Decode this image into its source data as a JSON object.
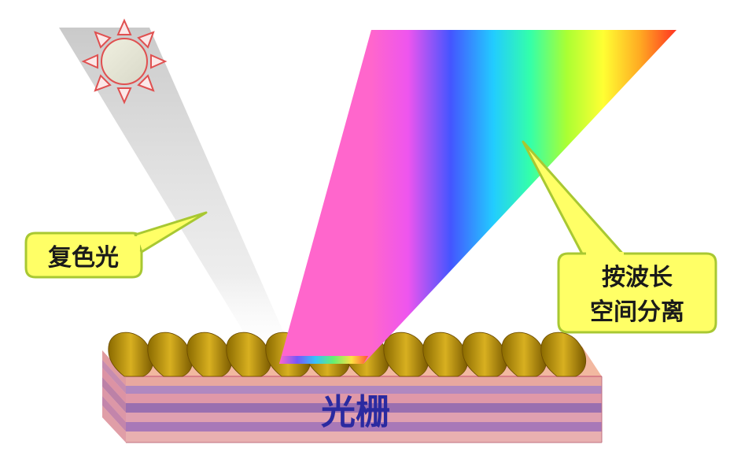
{
  "labels": {
    "incident_light": "复色光",
    "dispersion_line1": "按波长",
    "dispersion_line2": "空间分离",
    "grating": "光栅"
  },
  "colors": {
    "callout_fill": "#ffff66",
    "callout_stroke": "#a8c832",
    "grating_top": "#f2b8a0",
    "grating_stripe_purple": "#9a6fb0",
    "grating_stripe_pink": "#e09aa8",
    "ridge": "#c8a010",
    "sun_stroke": "#e05050",
    "grating_text": "#2a2aa0"
  },
  "icons": {
    "sun": "sun-icon"
  }
}
